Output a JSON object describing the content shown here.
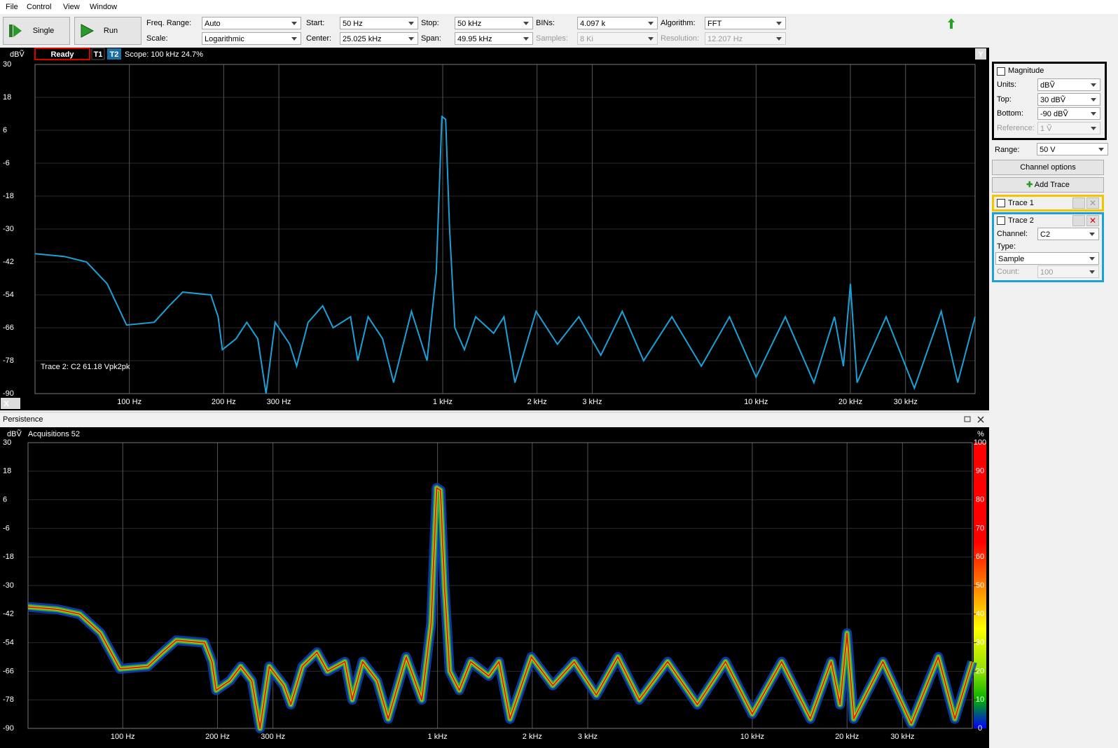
{
  "menu": [
    "File",
    "Control",
    "View",
    "Window"
  ],
  "toolbar": {
    "single": "Single",
    "run": "Run",
    "fields": [
      {
        "label": "Freq. Range:",
        "value": "Auto"
      },
      {
        "label": "Scale:",
        "value": "Logarithmic"
      },
      {
        "label": "Start:",
        "value": "50 Hz"
      },
      {
        "label": "Center:",
        "value": "25.025 kHz"
      },
      {
        "label": "Stop:",
        "value": "50 kHz"
      },
      {
        "label": "Span:",
        "value": "49.95 kHz"
      },
      {
        "label": "BINs:",
        "value": "4.097 k"
      },
      {
        "label": "Samples:",
        "value": "8 Ki",
        "disabled": true
      },
      {
        "label": "Algorithm:",
        "value": "FFT"
      },
      {
        "label": "Resolution:",
        "value": "12.207 Hz",
        "disabled": true
      }
    ]
  },
  "top_plot": {
    "ylabel": "dBṼ",
    "status": "Ready",
    "t1": "T1",
    "t2": "T2",
    "scope": "Scope: 100 kHz 24.7%",
    "annotation": "Trace 2: C2 61.18 Vpk2pk",
    "x_button": "X",
    "y_button": "Y",
    "color": "#1ba1d8",
    "log_x": true,
    "grid": true,
    "xlim": [
      50,
      50000
    ],
    "ylim": [
      -90,
      30
    ],
    "yticks": [
      30,
      18,
      6,
      -6,
      -18,
      -30,
      -42,
      -54,
      -66,
      -78,
      -90
    ],
    "xticks": [
      {
        "value": 100,
        "label": "100 Hz"
      },
      {
        "value": 200,
        "label": "200 Hz"
      },
      {
        "value": 300,
        "label": "300 Hz"
      },
      {
        "value": 1000,
        "label": "1 kHz"
      },
      {
        "value": 2000,
        "label": "2 kHz"
      },
      {
        "value": 3000,
        "label": "3 kHz"
      },
      {
        "value": 10000,
        "label": "10 kHz"
      },
      {
        "value": 20000,
        "label": "20 kHz"
      },
      {
        "value": 30000,
        "label": "30 kHz"
      }
    ],
    "x": [
      50,
      62,
      73,
      85,
      98,
      120,
      134,
      148,
      182,
      192,
      198,
      219,
      237,
      257,
      273,
      292,
      325,
      342,
      372,
      414,
      447,
      508,
      536,
      578,
      643,
      697,
      795,
      891,
      954,
      994,
      1022,
      1052,
      1093,
      1173,
      1274,
      1454,
      1568,
      1700,
      1986,
      2323,
      2719,
      3196,
      3740,
      4376,
      5385,
      6690,
      8227,
      10000,
      12400,
      15300,
      17800,
      19000,
      20000,
      21000,
      26000,
      32000,
      39000,
      44000,
      50000
    ],
    "values": [
      -39,
      -40,
      -42,
      -50,
      -65,
      -64,
      -58,
      -53,
      -54,
      -62,
      -74,
      -70,
      -64,
      -70,
      -90,
      -64,
      -72,
      -80,
      -64,
      -58,
      -66,
      -62,
      -78,
      -62,
      -70,
      -86,
      -60,
      -78,
      -46,
      11,
      10,
      -30,
      -66,
      -74,
      -62,
      -68,
      -62,
      -86,
      -60,
      -72,
      -62,
      -76,
      -60,
      -78,
      -62,
      -80,
      -62,
      -84,
      -62,
      -86,
      -62,
      -80,
      -50,
      -86,
      -62,
      -88,
      -60,
      -86,
      -62
    ]
  },
  "persistence": {
    "title": "Persistence",
    "ylabel": "dBṼ",
    "acquisitions": "Acquisitions 52",
    "unit": "%",
    "log_x": true,
    "grid": true,
    "xlim": [
      50,
      50000
    ],
    "ylim": [
      -90,
      30
    ],
    "yticks": [
      30,
      18,
      6,
      -6,
      -18,
      -30,
      -42,
      -54,
      -66,
      -78,
      -90
    ],
    "xticks": [
      {
        "value": 100,
        "label": "100 Hz"
      },
      {
        "value": 200,
        "label": "200 Hz"
      },
      {
        "value": 300,
        "label": "300 Hz"
      },
      {
        "value": 1000,
        "label": "1 kHz"
      },
      {
        "value": 2000,
        "label": "2 kHz"
      },
      {
        "value": 3000,
        "label": "3 kHz"
      },
      {
        "value": 10000,
        "label": "10 kHz"
      },
      {
        "value": 20000,
        "label": "20 kHz"
      },
      {
        "value": 30000,
        "label": "30 kHz"
      }
    ],
    "colorbar_lim": [
      0,
      100
    ],
    "colorbar_ticks": [
      100,
      90,
      80,
      70,
      60,
      50,
      40,
      30,
      20,
      10,
      0
    ]
  },
  "side": {
    "magnitude": "Magnitude",
    "units_label": "Units:",
    "units": "dBṼ",
    "top_label": "Top:",
    "top": "30 dBṼ",
    "bottom_label": "Bottom:",
    "bottom": "-90 dBṼ",
    "reference_label": "Reference:",
    "reference": "1 Ṽ",
    "range_label": "Range:",
    "range": "50 V",
    "channel_options": "Channel options",
    "add_trace": "Add Trace",
    "trace1": "Trace 1",
    "trace2": "Trace 2",
    "channel_label": "Channel:",
    "channel": "C2",
    "type_label": "Type:",
    "type": "Sample",
    "count_label": "Count:",
    "count": "100"
  }
}
